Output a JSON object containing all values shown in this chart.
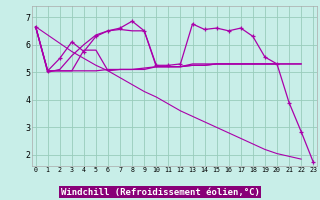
{
  "background_color": "#c8eee8",
  "grid_color": "#99ccbb",
  "line_color": "#aa00aa",
  "xlabel": "Windchill (Refroidissement éolien,°C)",
  "xlabel_fontsize": 6.5,
  "ytick_labels": [
    "2",
    "3",
    "4",
    "5",
    "6",
    "7"
  ],
  "yticks": [
    2,
    3,
    4,
    5,
    6,
    7
  ],
  "xtick_labels": [
    "0",
    "1",
    "2",
    "3",
    "4",
    "5",
    "6",
    "7",
    "8",
    "9",
    "10",
    "11",
    "12",
    "13",
    "14",
    "15",
    "16",
    "17",
    "18",
    "19",
    "20",
    "21",
    "22",
    "23"
  ],
  "xticks": [
    0,
    1,
    2,
    3,
    4,
    5,
    6,
    7,
    8,
    9,
    10,
    11,
    12,
    13,
    14,
    15,
    16,
    17,
    18,
    19,
    20,
    21,
    22,
    23
  ],
  "xlim": [
    -0.3,
    23.3
  ],
  "ylim": [
    1.6,
    7.4
  ],
  "series1_x": [
    0,
    1,
    2,
    3,
    4,
    5,
    6,
    7,
    8,
    9,
    10,
    11,
    12,
    13,
    14,
    15,
    16,
    17,
    18,
    19,
    20
  ],
  "series1_y": [
    6.65,
    5.05,
    5.05,
    5.05,
    5.05,
    5.05,
    5.1,
    5.1,
    5.1,
    5.15,
    5.2,
    5.2,
    5.2,
    5.25,
    5.25,
    5.3,
    5.3,
    5.3,
    5.3,
    5.3,
    5.3
  ],
  "series2_x": [
    0,
    1,
    2,
    3,
    4,
    5,
    6,
    7,
    8,
    9,
    10,
    11,
    12,
    13,
    14,
    15,
    16,
    17,
    18,
    19,
    20,
    21,
    22
  ],
  "series2_y": [
    6.65,
    5.05,
    5.05,
    5.05,
    5.8,
    5.8,
    5.05,
    5.1,
    5.1,
    5.1,
    5.2,
    5.2,
    5.2,
    5.3,
    5.3,
    5.3,
    5.3,
    5.3,
    5.3,
    5.3,
    5.3,
    5.3,
    5.3
  ],
  "series3_x": [
    0,
    1,
    2,
    3,
    4,
    5,
    6,
    7,
    8,
    9,
    10,
    11,
    12,
    13,
    14,
    15,
    16,
    17,
    18,
    19,
    20,
    21,
    22
  ],
  "series3_y": [
    6.65,
    5.0,
    5.1,
    5.6,
    6.0,
    6.35,
    6.5,
    6.55,
    6.5,
    6.5,
    5.2,
    5.2,
    5.2,
    5.25,
    5.25,
    5.3,
    5.3,
    5.3,
    5.3,
    5.3,
    5.3,
    5.3,
    5.3
  ],
  "series4_x": [
    0,
    1,
    2,
    3,
    4,
    5,
    6,
    7,
    8,
    9,
    10,
    11,
    12,
    13,
    14,
    15,
    16,
    17,
    18,
    19,
    20,
    21,
    22,
    23
  ],
  "series4_y": [
    6.65,
    5.05,
    5.5,
    6.1,
    5.75,
    6.3,
    6.5,
    6.6,
    6.85,
    6.5,
    5.25,
    5.25,
    5.3,
    6.75,
    6.55,
    6.6,
    6.5,
    6.6,
    6.3,
    5.55,
    5.3,
    3.9,
    2.85,
    1.75
  ],
  "series5_x": [
    0,
    1,
    2,
    3,
    4,
    5,
    6,
    7,
    8,
    9,
    10,
    11,
    12,
    13,
    14,
    15,
    16,
    17,
    18,
    19,
    20,
    21,
    22
  ],
  "series5_y": [
    6.65,
    6.35,
    6.05,
    5.75,
    5.5,
    5.25,
    5.05,
    4.8,
    4.55,
    4.3,
    4.1,
    3.85,
    3.6,
    3.4,
    3.2,
    3.0,
    2.8,
    2.6,
    2.4,
    2.2,
    2.05,
    1.95,
    1.85
  ]
}
